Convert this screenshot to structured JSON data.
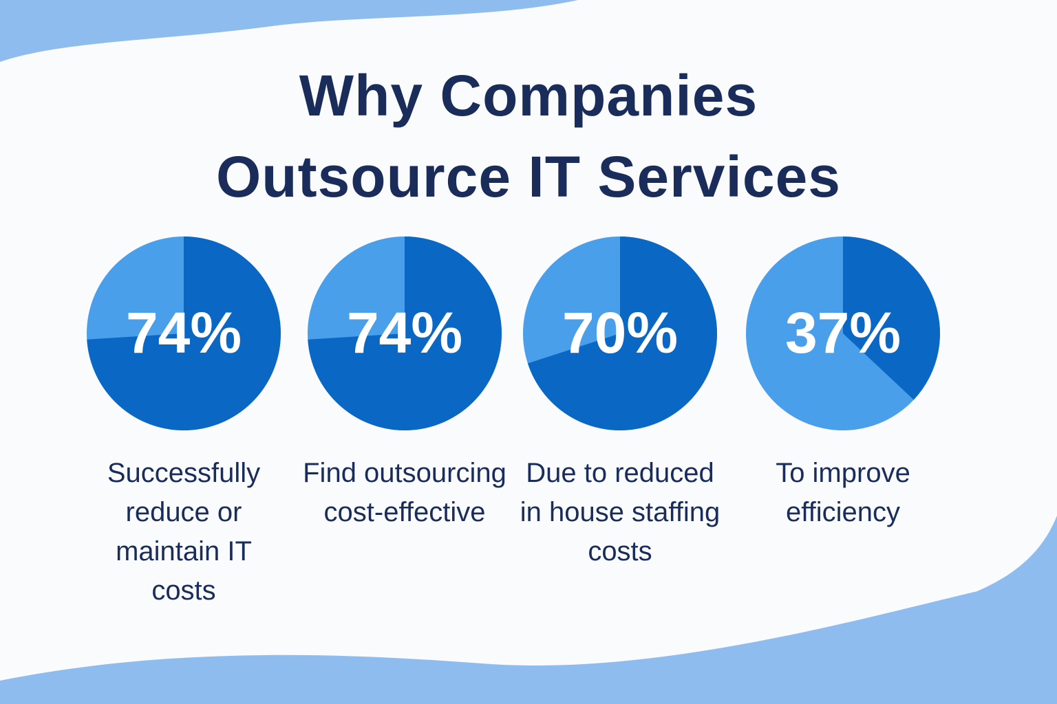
{
  "title": "Why Companies Outsource IT Services",
  "chart_data": [
    {
      "type": "pie",
      "values": [
        74
      ],
      "value_labels": [
        "74%"
      ],
      "caption": "Successfully reduce or maintain IT costs",
      "color": "#0a68c4",
      "rest_color": "#4a9fea"
    },
    {
      "type": "pie",
      "values": [
        74
      ],
      "value_labels": [
        "74%"
      ],
      "caption": "Find outsourcing cost-effective",
      "color": "#0a68c4",
      "rest_color": "#4a9fea"
    },
    {
      "type": "pie",
      "values": [
        70
      ],
      "value_labels": [
        "70%"
      ],
      "caption": "Due to reduced in house staffing costs",
      "color": "#0a68c4",
      "rest_color": "#4a9fea"
    },
    {
      "type": "pie",
      "values": [
        37
      ],
      "value_labels": [
        "37%"
      ],
      "caption": "To improve efficiency",
      "color": "#0a68c4",
      "rest_color": "#4a9fea"
    }
  ]
}
